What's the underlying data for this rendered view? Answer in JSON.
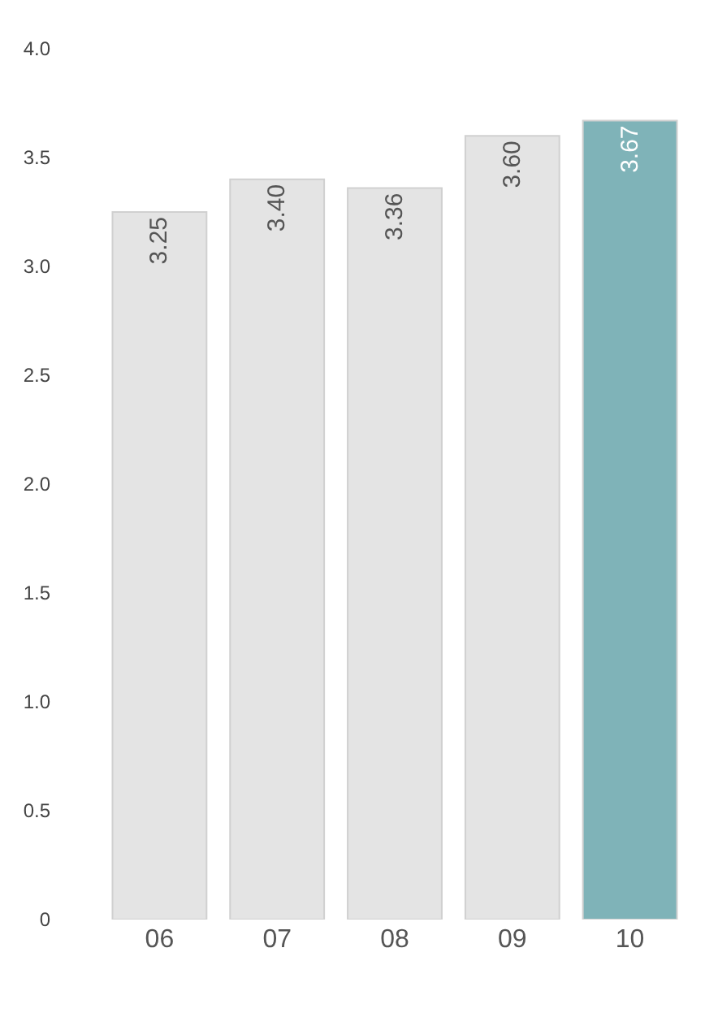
{
  "chart_data": {
    "type": "bar",
    "categories": [
      "06",
      "07",
      "08",
      "09",
      "10"
    ],
    "values": [
      3.25,
      3.4,
      3.36,
      3.6,
      3.67
    ],
    "colors": [
      "#e4e4e4",
      "#e4e4e4",
      "#e4e4e4",
      "#e4e4e4",
      "#7fb3b8"
    ],
    "value_labels": [
      "3.25",
      "3.40",
      "3.36",
      "3.60",
      "3.67"
    ],
    "ylim": [
      0,
      4.0
    ],
    "yticks": [
      0,
      {
        "value": 0.5,
        "label": "0.5"
      },
      {
        "value": 1,
        "label": "1.0"
      },
      {
        "value": 1.5,
        "label": "1.5"
      },
      {
        "value": 2,
        "label": "2.0"
      },
      {
        "value": 2.5,
        "label": "2.5"
      },
      {
        "value": 3,
        "label": "3.0"
      },
      {
        "value": 3.5,
        "label": "3.5"
      },
      {
        "value": 4,
        "label": "4.0"
      }
    ],
    "grid": false,
    "legend": false
  }
}
